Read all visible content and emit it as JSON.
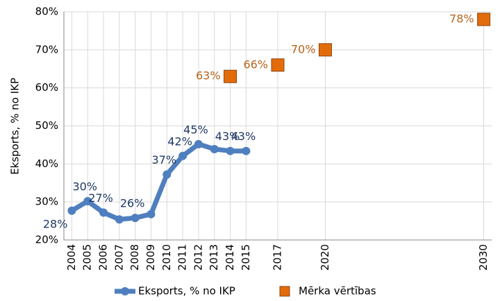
{
  "chart_data": {
    "type": "line",
    "y_label": "Eksports, % no IKP",
    "xlim": [
      2003.5,
      2030.5
    ],
    "xticks": [
      2004,
      2005,
      2006,
      2007,
      2008,
      2009,
      2010,
      2011,
      2012,
      2013,
      2014,
      2015,
      2017,
      2020,
      2030
    ],
    "ylim": [
      20,
      80
    ],
    "yticks": [
      {
        "value": 20,
        "label": "20%"
      },
      {
        "value": 30,
        "label": "30%"
      },
      {
        "value": 40,
        "label": "40%"
      },
      {
        "value": 50,
        "label": "50%"
      },
      {
        "value": 60,
        "label": "60%"
      },
      {
        "value": 70,
        "label": "70%"
      },
      {
        "value": 80,
        "label": "80%"
      }
    ],
    "grid": true,
    "legend": "bottom",
    "series": [
      {
        "name": "Eksports, % no IKP",
        "color": "#4f7fbf",
        "label_color": "#1f3864",
        "marker": "circle",
        "x": [
          2004,
          2005,
          2006,
          2007,
          2008,
          2009,
          2010,
          2011,
          2012,
          2013,
          2014,
          2015
        ],
        "values": [
          27.7,
          30.2,
          27.2,
          25.4,
          25.8,
          26.8,
          37.2,
          42.1,
          45.2,
          43.9,
          43.4,
          43.4
        ],
        "value_labels": [
          "28%",
          "30%",
          "27%",
          null,
          "26%",
          null,
          "37%",
          "42%",
          "45%",
          null,
          "43%",
          "43%"
        ]
      },
      {
        "name": "Mērka vērtības",
        "color": "#e36c0a",
        "label_color": "#b5651d",
        "marker": "square",
        "x": [
          2014,
          2017,
          2020,
          2030
        ],
        "values": [
          63,
          66,
          70,
          78
        ],
        "value_labels": [
          "63%",
          "66%",
          "70%",
          "78%"
        ]
      }
    ]
  }
}
